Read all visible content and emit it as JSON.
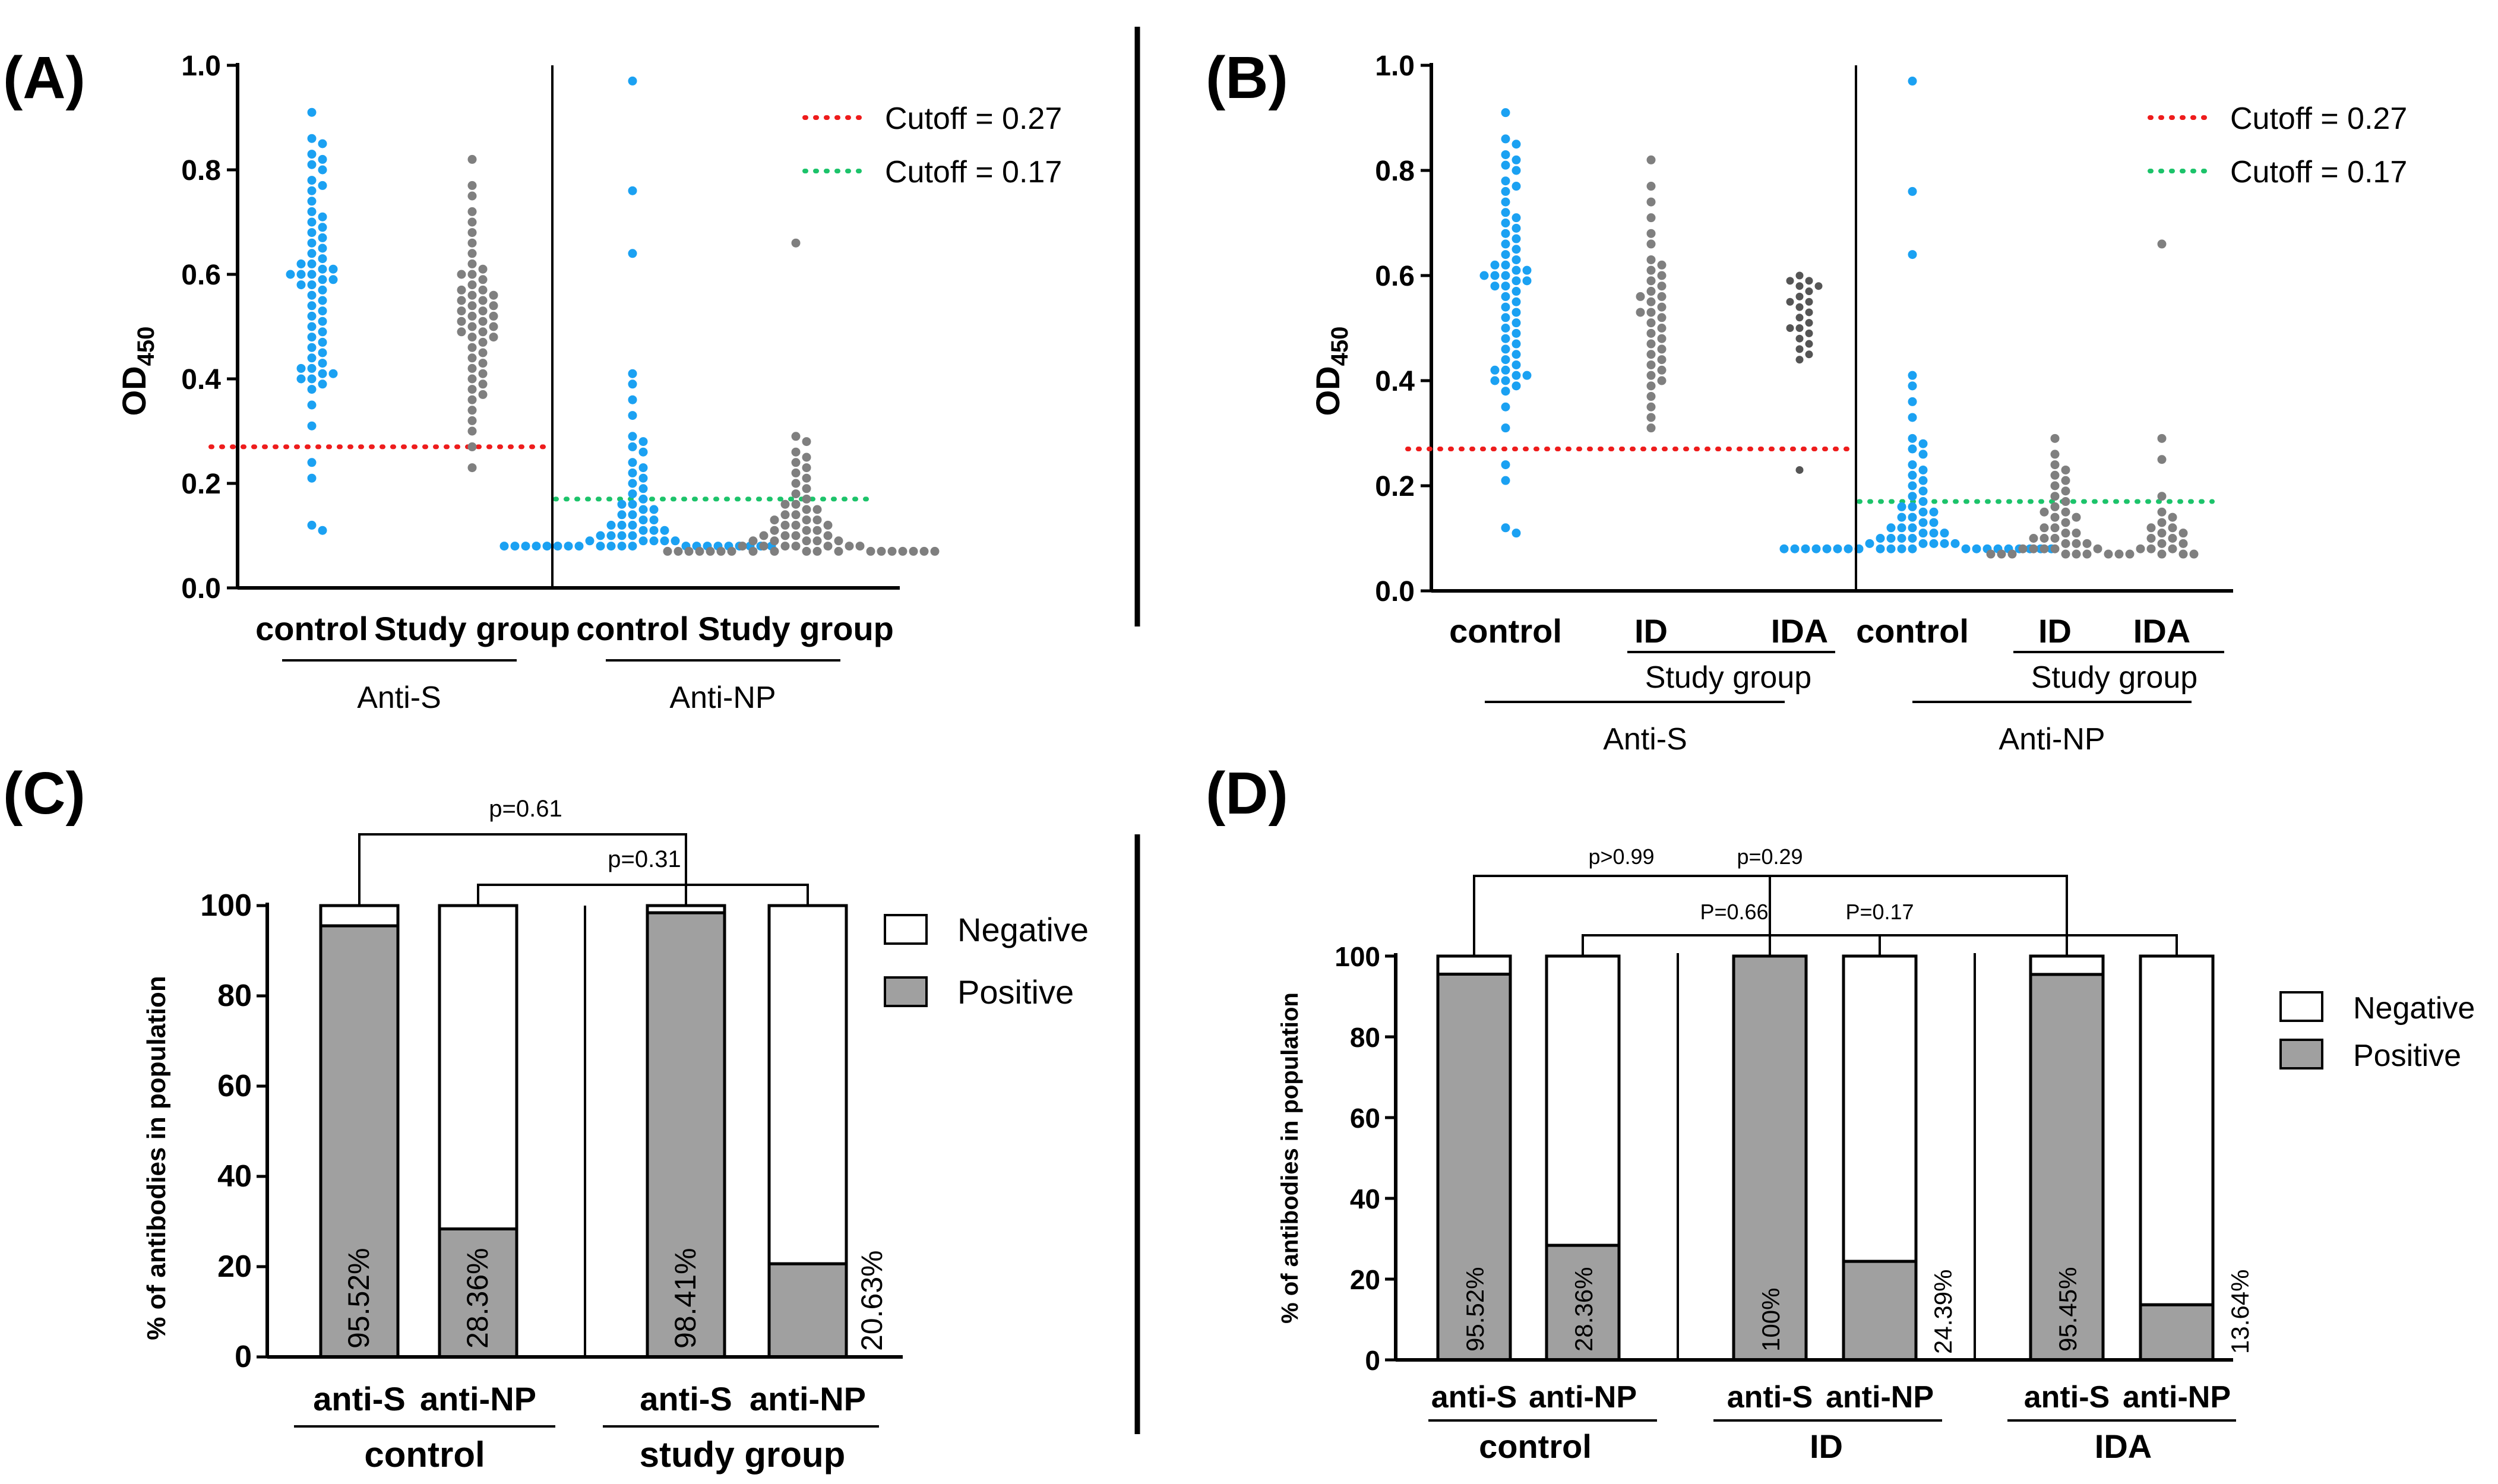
{
  "colors": {
    "control": "#1ba1f2",
    "study": "#7f7f7f",
    "idaDark": "#555555",
    "cutoffRed": "#ee1c1c",
    "cutoffGreen": "#1cc36a",
    "barGray": "#a0a0a0",
    "barWhite": "#ffffff"
  },
  "chart_data": [
    {
      "id": "A",
      "type": "scatter",
      "panel_label": "(A)",
      "ylabel": "OD",
      "ylabel_sub": "450",
      "ylim": [
        0,
        1.0
      ],
      "yticks": [
        "0.0",
        "0.2",
        "0.4",
        "0.6",
        "0.8",
        "1.0"
      ],
      "cutoffs": [
        {
          "label": "Cutoff = 0.27",
          "value": 0.27,
          "color": "red",
          "applies_to": "Anti-S"
        },
        {
          "label": "Cutoff = 0.17",
          "value": 0.17,
          "color": "green",
          "applies_to": "Anti-NP"
        }
      ],
      "groups": [
        {
          "name": "control",
          "antibody": "Anti-S",
          "color": "control",
          "values": [
            0.91,
            0.86,
            0.85,
            0.83,
            0.82,
            0.81,
            0.8,
            0.78,
            0.77,
            0.76,
            0.74,
            0.72,
            0.71,
            0.7,
            0.69,
            0.68,
            0.67,
            0.66,
            0.65,
            0.64,
            0.63,
            0.62,
            0.62,
            0.61,
            0.61,
            0.6,
            0.6,
            0.6,
            0.59,
            0.59,
            0.58,
            0.58,
            0.57,
            0.56,
            0.55,
            0.54,
            0.53,
            0.52,
            0.51,
            0.5,
            0.49,
            0.48,
            0.47,
            0.46,
            0.45,
            0.44,
            0.43,
            0.42,
            0.42,
            0.41,
            0.41,
            0.4,
            0.4,
            0.39,
            0.38,
            0.35,
            0.31,
            0.24,
            0.21,
            0.12,
            0.11
          ]
        },
        {
          "name": "Study group",
          "antibody": "Anti-S",
          "color": "study",
          "values": [
            0.82,
            0.77,
            0.75,
            0.72,
            0.7,
            0.68,
            0.66,
            0.64,
            0.62,
            0.61,
            0.6,
            0.6,
            0.59,
            0.58,
            0.57,
            0.57,
            0.56,
            0.56,
            0.55,
            0.55,
            0.54,
            0.54,
            0.53,
            0.53,
            0.52,
            0.52,
            0.51,
            0.51,
            0.5,
            0.5,
            0.49,
            0.49,
            0.48,
            0.48,
            0.47,
            0.46,
            0.45,
            0.44,
            0.43,
            0.42,
            0.41,
            0.4,
            0.39,
            0.38,
            0.37,
            0.36,
            0.34,
            0.32,
            0.3,
            0.27,
            0.23
          ]
        },
        {
          "name": "control",
          "antibody": "Anti-NP",
          "color": "control",
          "values": [
            0.97,
            0.76,
            0.64,
            0.41,
            0.39,
            0.36,
            0.33,
            0.29,
            0.28,
            0.27,
            0.26,
            0.24,
            0.23,
            0.22,
            0.21,
            0.2,
            0.19,
            0.18,
            0.17,
            0.16,
            0.16,
            0.15,
            0.15,
            0.14,
            0.14,
            0.13,
            0.13,
            0.12,
            0.12,
            0.12,
            0.11,
            0.11,
            0.11,
            0.1,
            0.1,
            0.1,
            0.1,
            0.09,
            0.09,
            0.09,
            0.09,
            0.09,
            0.08,
            0.08,
            0.08,
            0.08,
            0.08,
            0.08,
            0.08,
            0.08,
            0.08,
            0.08,
            0.08,
            0.08,
            0.08,
            0.08,
            0.08,
            0.08,
            0.08,
            0.08,
            0.08,
            0.08,
            0.08
          ]
        },
        {
          "name": "Study group",
          "antibody": "Anti-NP",
          "color": "study",
          "values": [
            0.66,
            0.29,
            0.28,
            0.26,
            0.25,
            0.24,
            0.23,
            0.22,
            0.21,
            0.2,
            0.19,
            0.18,
            0.17,
            0.16,
            0.16,
            0.15,
            0.15,
            0.14,
            0.14,
            0.13,
            0.13,
            0.13,
            0.12,
            0.12,
            0.12,
            0.11,
            0.11,
            0.11,
            0.1,
            0.1,
            0.1,
            0.1,
            0.09,
            0.09,
            0.09,
            0.09,
            0.09,
            0.08,
            0.08,
            0.08,
            0.08,
            0.08,
            0.08,
            0.08,
            0.07,
            0.07,
            0.07,
            0.07,
            0.07,
            0.07,
            0.07,
            0.07,
            0.07,
            0.07,
            0.07,
            0.07,
            0.07,
            0.07,
            0.07,
            0.07,
            0.07,
            0.07,
            0.07
          ]
        }
      ],
      "xlabels": [
        "control",
        "Study group",
        "control",
        "Study group"
      ],
      "sections": [
        "Anti-S",
        "Anti-NP"
      ]
    },
    {
      "id": "B",
      "type": "scatter",
      "panel_label": "(B)",
      "ylabel": "OD",
      "ylabel_sub": "450",
      "ylim": [
        0,
        1.0
      ],
      "yticks": [
        "0.0",
        "0.2",
        "0.4",
        "0.6",
        "0.8",
        "1.0"
      ],
      "cutoffs": [
        {
          "label": "Cutoff = 0.27",
          "value": 0.27,
          "color": "red",
          "applies_to": "Anti-S"
        },
        {
          "label": "Cutoff = 0.17",
          "value": 0.17,
          "color": "green",
          "applies_to": "Anti-NP"
        }
      ],
      "groups": [
        {
          "name": "control",
          "antibody": "Anti-S",
          "color": "control",
          "values": [
            0.91,
            0.86,
            0.85,
            0.83,
            0.82,
            0.81,
            0.8,
            0.78,
            0.77,
            0.76,
            0.74,
            0.72,
            0.71,
            0.7,
            0.69,
            0.68,
            0.67,
            0.66,
            0.65,
            0.64,
            0.63,
            0.62,
            0.62,
            0.61,
            0.61,
            0.6,
            0.6,
            0.6,
            0.59,
            0.59,
            0.58,
            0.58,
            0.57,
            0.56,
            0.55,
            0.54,
            0.53,
            0.52,
            0.51,
            0.5,
            0.49,
            0.48,
            0.47,
            0.46,
            0.45,
            0.44,
            0.43,
            0.42,
            0.42,
            0.41,
            0.41,
            0.4,
            0.4,
            0.39,
            0.38,
            0.35,
            0.31,
            0.24,
            0.21,
            0.12,
            0.11
          ]
        },
        {
          "name": "ID",
          "antibody": "Anti-S",
          "color": "study",
          "values": [
            0.82,
            0.77,
            0.74,
            0.71,
            0.68,
            0.66,
            0.63,
            0.62,
            0.61,
            0.6,
            0.59,
            0.58,
            0.57,
            0.56,
            0.56,
            0.55,
            0.54,
            0.53,
            0.53,
            0.52,
            0.51,
            0.5,
            0.49,
            0.48,
            0.47,
            0.46,
            0.45,
            0.44,
            0.43,
            0.42,
            0.41,
            0.4,
            0.39,
            0.37,
            0.35,
            0.33,
            0.31
          ]
        },
        {
          "name": "IDA",
          "antibody": "Anti-S",
          "color": "idaDark",
          "values": [
            0.6,
            0.59,
            0.59,
            0.58,
            0.58,
            0.57,
            0.56,
            0.55,
            0.55,
            0.54,
            0.53,
            0.52,
            0.51,
            0.5,
            0.5,
            0.49,
            0.48,
            0.47,
            0.46,
            0.45,
            0.44,
            0.23
          ]
        },
        {
          "name": "control",
          "antibody": "Anti-NP",
          "color": "control",
          "values": [
            0.97,
            0.76,
            0.64,
            0.41,
            0.39,
            0.36,
            0.33,
            0.29,
            0.28,
            0.27,
            0.26,
            0.24,
            0.23,
            0.22,
            0.21,
            0.2,
            0.19,
            0.18,
            0.17,
            0.16,
            0.16,
            0.15,
            0.15,
            0.14,
            0.14,
            0.13,
            0.13,
            0.12,
            0.12,
            0.12,
            0.11,
            0.11,
            0.11,
            0.1,
            0.1,
            0.1,
            0.1,
            0.09,
            0.09,
            0.09,
            0.09,
            0.09,
            0.08,
            0.08,
            0.08,
            0.08,
            0.08,
            0.08,
            0.08,
            0.08,
            0.08,
            0.08,
            0.08,
            0.08,
            0.08,
            0.08,
            0.08,
            0.08,
            0.08,
            0.08,
            0.08,
            0.08,
            0.08
          ]
        },
        {
          "name": "ID",
          "antibody": "Anti-NP",
          "color": "study",
          "values": [
            0.29,
            0.26,
            0.24,
            0.23,
            0.22,
            0.21,
            0.2,
            0.19,
            0.18,
            0.17,
            0.16,
            0.15,
            0.15,
            0.14,
            0.14,
            0.13,
            0.12,
            0.12,
            0.11,
            0.11,
            0.1,
            0.1,
            0.1,
            0.09,
            0.09,
            0.09,
            0.08,
            0.08,
            0.08,
            0.08,
            0.08,
            0.07,
            0.07,
            0.07,
            0.07,
            0.07,
            0.07,
            0.07,
            0.07
          ]
        },
        {
          "name": "IDA",
          "antibody": "Anti-NP",
          "color": "study",
          "values": [
            0.66,
            0.29,
            0.25,
            0.18,
            0.15,
            0.14,
            0.13,
            0.12,
            0.12,
            0.11,
            0.11,
            0.1,
            0.1,
            0.09,
            0.09,
            0.08,
            0.08,
            0.08,
            0.07,
            0.07,
            0.07,
            0.07
          ]
        }
      ],
      "xlabels": [
        "control",
        "ID",
        "IDA",
        "control",
        "ID",
        "IDA"
      ],
      "subgroup_label": "Study group",
      "sections": [
        "Anti-S",
        "Anti-NP"
      ]
    },
    {
      "id": "C",
      "type": "bar",
      "stacked": true,
      "panel_label": "(C)",
      "ylabel": "% of antibodies in population",
      "ylim": [
        0,
        100
      ],
      "yticks": [
        "0",
        "20",
        "40",
        "60",
        "80",
        "100"
      ],
      "legend": [
        "Negative",
        "Positive"
      ],
      "bars": [
        {
          "category": "anti-S",
          "group": "control",
          "positive": 95.52,
          "label": "95.52%",
          "label_pos": "inside"
        },
        {
          "category": "anti-NP",
          "group": "control",
          "positive": 28.36,
          "label": "28.36%",
          "label_pos": "inside"
        },
        {
          "category": "anti-S",
          "group": "study group",
          "positive": 98.41,
          "label": "98.41%",
          "label_pos": "inside"
        },
        {
          "category": "anti-NP",
          "group": "study group",
          "positive": 20.63,
          "label": "20.63%",
          "label_pos": "outside"
        }
      ],
      "groups": [
        "control",
        "study group"
      ],
      "pvalues": [
        {
          "text": "p=0.61",
          "from": 0,
          "to": 2
        },
        {
          "text": "p=0.31",
          "from": 1,
          "to": 3
        }
      ]
    },
    {
      "id": "D",
      "type": "bar",
      "stacked": true,
      "panel_label": "(D)",
      "ylabel": "% of antibodies in population",
      "ylim": [
        0,
        100
      ],
      "yticks": [
        "0",
        "20",
        "40",
        "60",
        "80",
        "100"
      ],
      "legend": [
        "Negative",
        "Positive"
      ],
      "bars": [
        {
          "category": "anti-S",
          "group": "control",
          "positive": 95.52,
          "label": "95.52%",
          "label_pos": "inside"
        },
        {
          "category": "anti-NP",
          "group": "control",
          "positive": 28.36,
          "label": "28.36%",
          "label_pos": "inside"
        },
        {
          "category": "anti-S",
          "group": "ID",
          "positive": 100,
          "label": "100%",
          "label_pos": "inside"
        },
        {
          "category": "anti-NP",
          "group": "ID",
          "positive": 24.39,
          "label": "24.39%",
          "label_pos": "outside"
        },
        {
          "category": "anti-S",
          "group": "IDA",
          "positive": 95.45,
          "label": "95.45%",
          "label_pos": "inside"
        },
        {
          "category": "anti-NP",
          "group": "IDA",
          "positive": 13.64,
          "label": "13.64%",
          "label_pos": "outside"
        }
      ],
      "groups": [
        "control",
        "ID",
        "IDA"
      ],
      "pvalues": [
        {
          "text": "p>0.99",
          "from": 0,
          "to": 2
        },
        {
          "text": "p=0.29",
          "from": 0,
          "to": 4
        },
        {
          "text": "P=0.66",
          "from": 1,
          "to": 3
        },
        {
          "text": "P=0.17",
          "from": 1,
          "to": 5
        }
      ]
    }
  ]
}
